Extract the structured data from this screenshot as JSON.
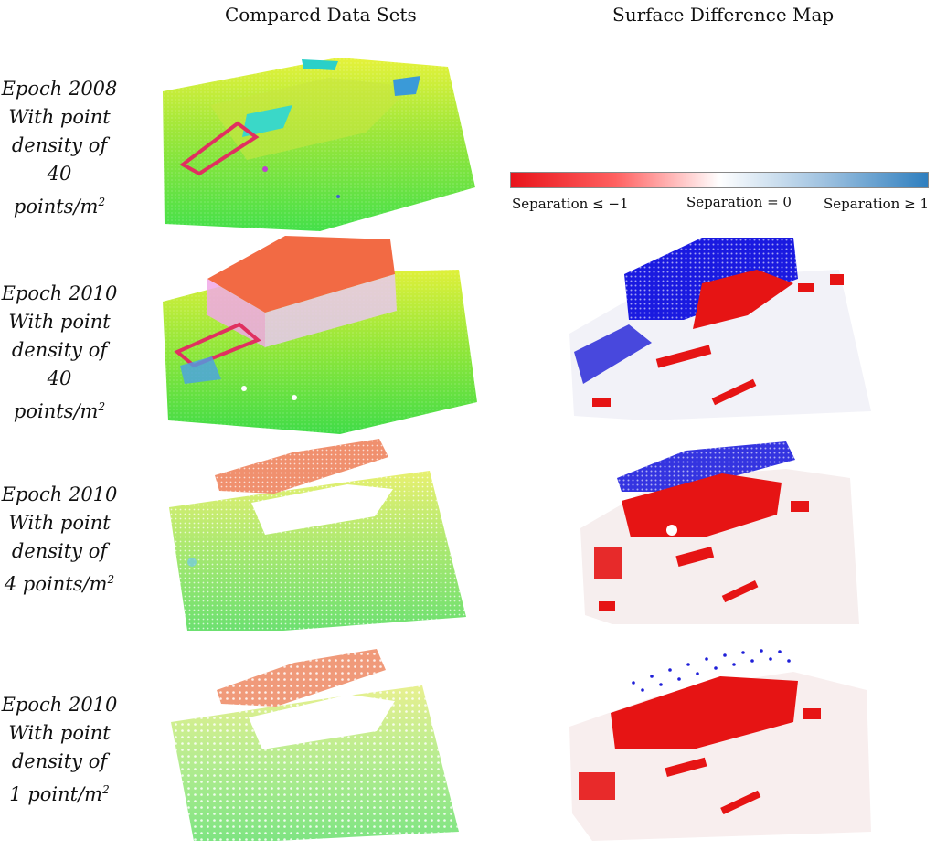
{
  "headers": {
    "left": "Compared Data Sets",
    "right": "Surface Difference Map"
  },
  "legend": {
    "min_label": "Separation ≤ −1",
    "mid_label": "Separation = 0",
    "max_label": "Separation ≥ 1",
    "colors": [
      "#e8141a",
      "#ffffff",
      "#2f7fbf"
    ]
  },
  "rows": [
    {
      "epoch": "Epoch 2008",
      "line2": "With point",
      "line3": "density of",
      "density": "40 points/m",
      "sup": "2"
    },
    {
      "epoch": "Epoch 2010",
      "line2": "With point",
      "line3": "density of",
      "density": "40 points/m",
      "sup": "2"
    },
    {
      "epoch": "Epoch 2010",
      "line2": "With point",
      "line3": "density of",
      "density": "4 points/m",
      "sup": "2"
    },
    {
      "epoch": "Epoch 2010",
      "line2": "With point",
      "line3": "density of",
      "density": "1 point/m",
      "sup": "2"
    }
  ]
}
